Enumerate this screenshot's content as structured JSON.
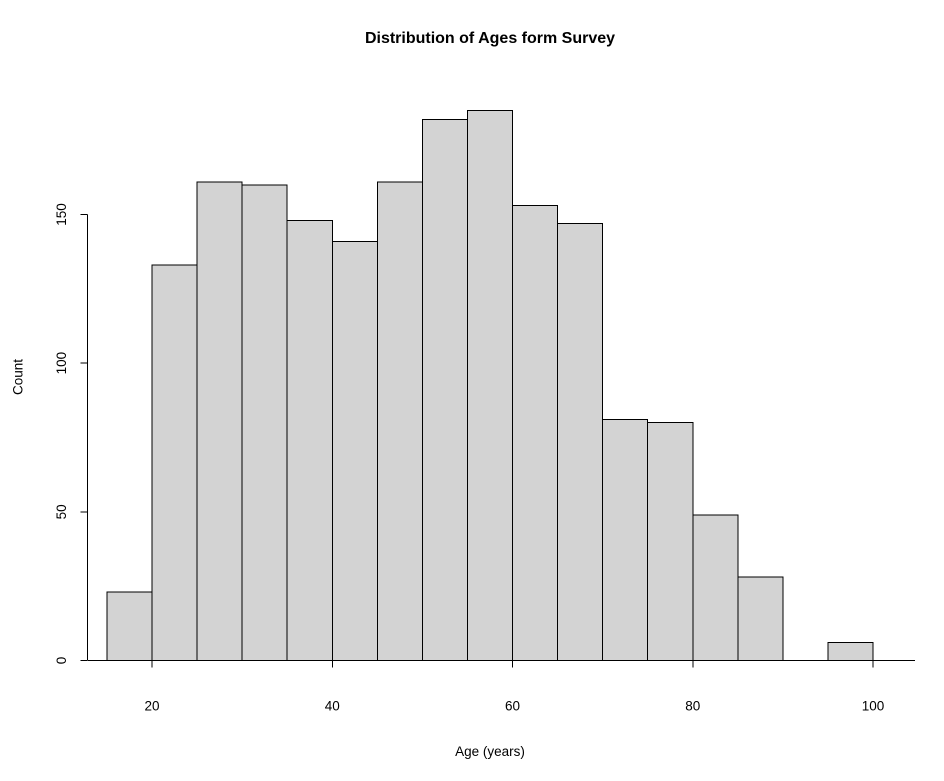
{
  "chart_data": {
    "type": "bar",
    "chart_kind": "histogram",
    "title": "Distribution of Ages form Survey",
    "xlabel": "Age (years)",
    "ylabel": "Count",
    "bin_start": 15,
    "bin_width": 5,
    "bin_edges": [
      15,
      20,
      25,
      30,
      35,
      40,
      45,
      50,
      55,
      60,
      65,
      70,
      75,
      80,
      85,
      90,
      95,
      100
    ],
    "values": [
      23,
      133,
      161,
      160,
      148,
      141,
      161,
      182,
      185,
      153,
      147,
      81,
      80,
      49,
      28,
      0,
      6
    ],
    "x_ticks": [
      20,
      40,
      60,
      80,
      100
    ],
    "y_ticks": [
      0,
      50,
      100,
      150
    ],
    "xlim": [
      15,
      100
    ],
    "ylim": [
      0,
      190
    ],
    "grid": false,
    "legend": "none",
    "bar_fill": "#d3d3d3",
    "bar_stroke": "#000000",
    "background": "#ffffff"
  }
}
